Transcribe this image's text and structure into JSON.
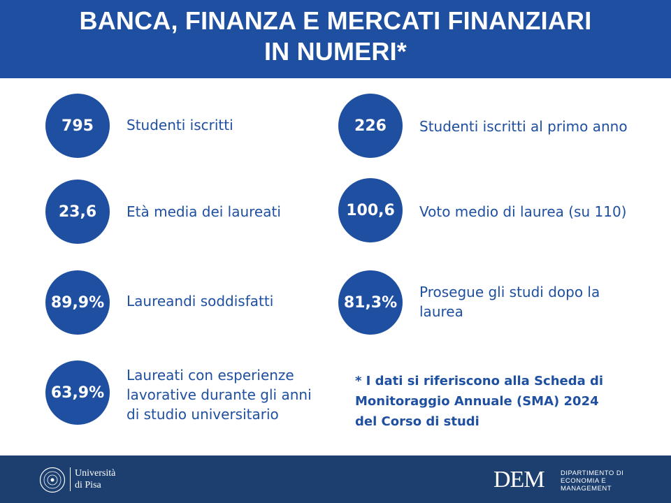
{
  "header": {
    "title_line1": "BANCA, FINANZA E MERCATI FINANZIARI",
    "title_line2": "IN NUMERI*"
  },
  "stats": [
    {
      "value": "795",
      "label": "Studenti iscritti"
    },
    {
      "value": "226",
      "label": "Studenti iscritti al primo anno"
    },
    {
      "value": "23,6",
      "label": "Età media dei laureati"
    },
    {
      "value": "100,6",
      "label": "Voto medio di laurea (su 110)"
    },
    {
      "value": "89,9%",
      "label": "Laureandi soddisfatti"
    },
    {
      "value": "81,3%",
      "label_lines": [
        "Prosegue gli studi dopo la",
        "laurea"
      ]
    },
    {
      "value": "63,9%",
      "label_lines": [
        "Laureati con esperienze",
        "lavorative durante gli anni",
        "di studio universitario"
      ]
    }
  ],
  "note": {
    "lines": [
      "* I dati si riferiscono alla Scheda di",
      "Monitoraggio Annuale (SMA) 2024",
      "del Corso di studi"
    ]
  },
  "footer": {
    "university": {
      "line1": "Università",
      "line2": "di Pisa"
    },
    "dem": {
      "acronym": "DEM",
      "line1": "Dipartimento di",
      "line2": "Economia e",
      "line3": "Management"
    }
  },
  "colors": {
    "primary": "#1e4fa0",
    "footer": "#1c3f70"
  }
}
